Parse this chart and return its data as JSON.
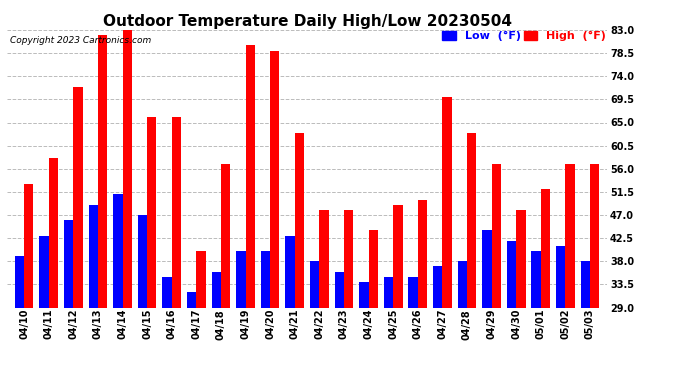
{
  "title": "Outdoor Temperature Daily High/Low 20230504",
  "copyright": "Copyright 2023 Cartronics.com",
  "ylabel_right_ticks": [
    29.0,
    33.5,
    38.0,
    42.5,
    47.0,
    51.5,
    56.0,
    60.5,
    65.0,
    69.5,
    74.0,
    78.5,
    83.0
  ],
  "ylim": [
    29.0,
    83.0
  ],
  "categories": [
    "04/10",
    "04/11",
    "04/12",
    "04/13",
    "04/14",
    "04/15",
    "04/16",
    "04/17",
    "04/18",
    "04/19",
    "04/20",
    "04/21",
    "04/22",
    "04/23",
    "04/24",
    "04/25",
    "04/26",
    "04/27",
    "04/28",
    "04/29",
    "04/30",
    "05/01",
    "05/02",
    "05/03"
  ],
  "high": [
    53,
    58,
    72,
    82,
    83,
    66,
    66,
    40,
    57,
    80,
    79,
    63,
    48,
    48,
    44,
    49,
    50,
    70,
    63,
    57,
    48,
    52,
    57,
    57
  ],
  "low": [
    39,
    43,
    46,
    49,
    51,
    47,
    35,
    32,
    36,
    40,
    40,
    43,
    38,
    36,
    34,
    35,
    35,
    37,
    38,
    44,
    42,
    40,
    41,
    38
  ],
  "bar_width": 0.38,
  "high_color": "#ff0000",
  "low_color": "#0000ff",
  "background_color": "#ffffff",
  "grid_color": "#bbbbbb",
  "title_fontsize": 11,
  "tick_fontsize": 7,
  "legend_fontsize": 8,
  "ybase": 29.0
}
